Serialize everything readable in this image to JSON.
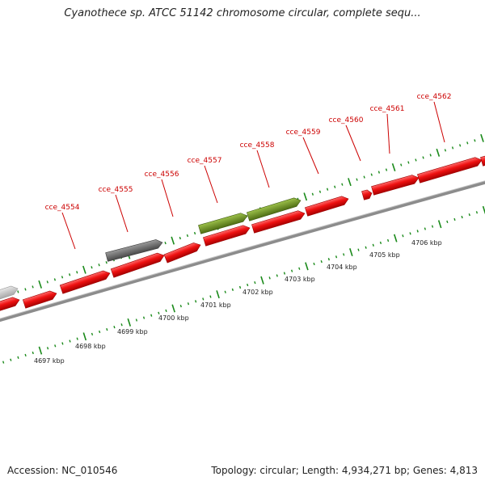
{
  "title": "Cyanothece sp. ATCC 51142 chromosome circular, complete sequ...",
  "footer": {
    "accession": "Accession: NC_010546",
    "stats": "Topology: circular; Length: 4,934,271 bp; Genes: 4,813"
  },
  "colors": {
    "cds": "#ee1111",
    "labeled_dark": "#6a6a6a",
    "labeled_olive": "#6b8e23",
    "pseudo_light": "#c8c8c8",
    "backbone": "#8c8c8c",
    "tick": "#1a8a1a",
    "label": "#cc0000"
  },
  "scale": {
    "unit": "kbp",
    "ticks": [
      "4697 kbp",
      "4698 kbp",
      "4699 kbp",
      "4700 kbp",
      "4701 kbp",
      "4702 kbp",
      "4703 kbp",
      "4704 kbp",
      "4705 kbp",
      "4706 kbp"
    ]
  },
  "gene_labels": [
    "cce_4554",
    "cce_4555",
    "cce_4556",
    "cce_4557",
    "cce_4558",
    "cce_4559",
    "cce_4560",
    "cce_4561",
    "cce_4562"
  ]
}
